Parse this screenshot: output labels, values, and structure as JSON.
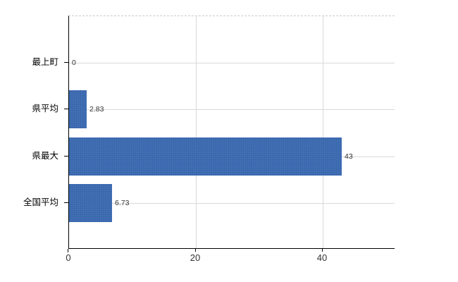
{
  "chart_data": {
    "type": "bar",
    "orientation": "horizontal",
    "title": "",
    "xlabel": "",
    "ylabel": "",
    "categories": [
      "最上町",
      "県平均",
      "県最大",
      "全国平均"
    ],
    "values": [
      0,
      2.83,
      43,
      6.73
    ],
    "value_labels": [
      "0",
      "2.83",
      "43",
      "6.73"
    ],
    "x_ticks": [
      0,
      20,
      40
    ],
    "x_tick_labels": [
      "0",
      "20",
      "40"
    ],
    "xlim": [
      0,
      51.4
    ],
    "grid": true,
    "legend_position": "none"
  },
  "colors": {
    "bar": "#3c6cb4",
    "gridline": "#d9d9d9",
    "top_border": "#c9c9c9",
    "axis": "#000000",
    "category_text": "#000000",
    "value_text": "#333333",
    "tick_text": "#333333",
    "background": "#ffffff"
  }
}
